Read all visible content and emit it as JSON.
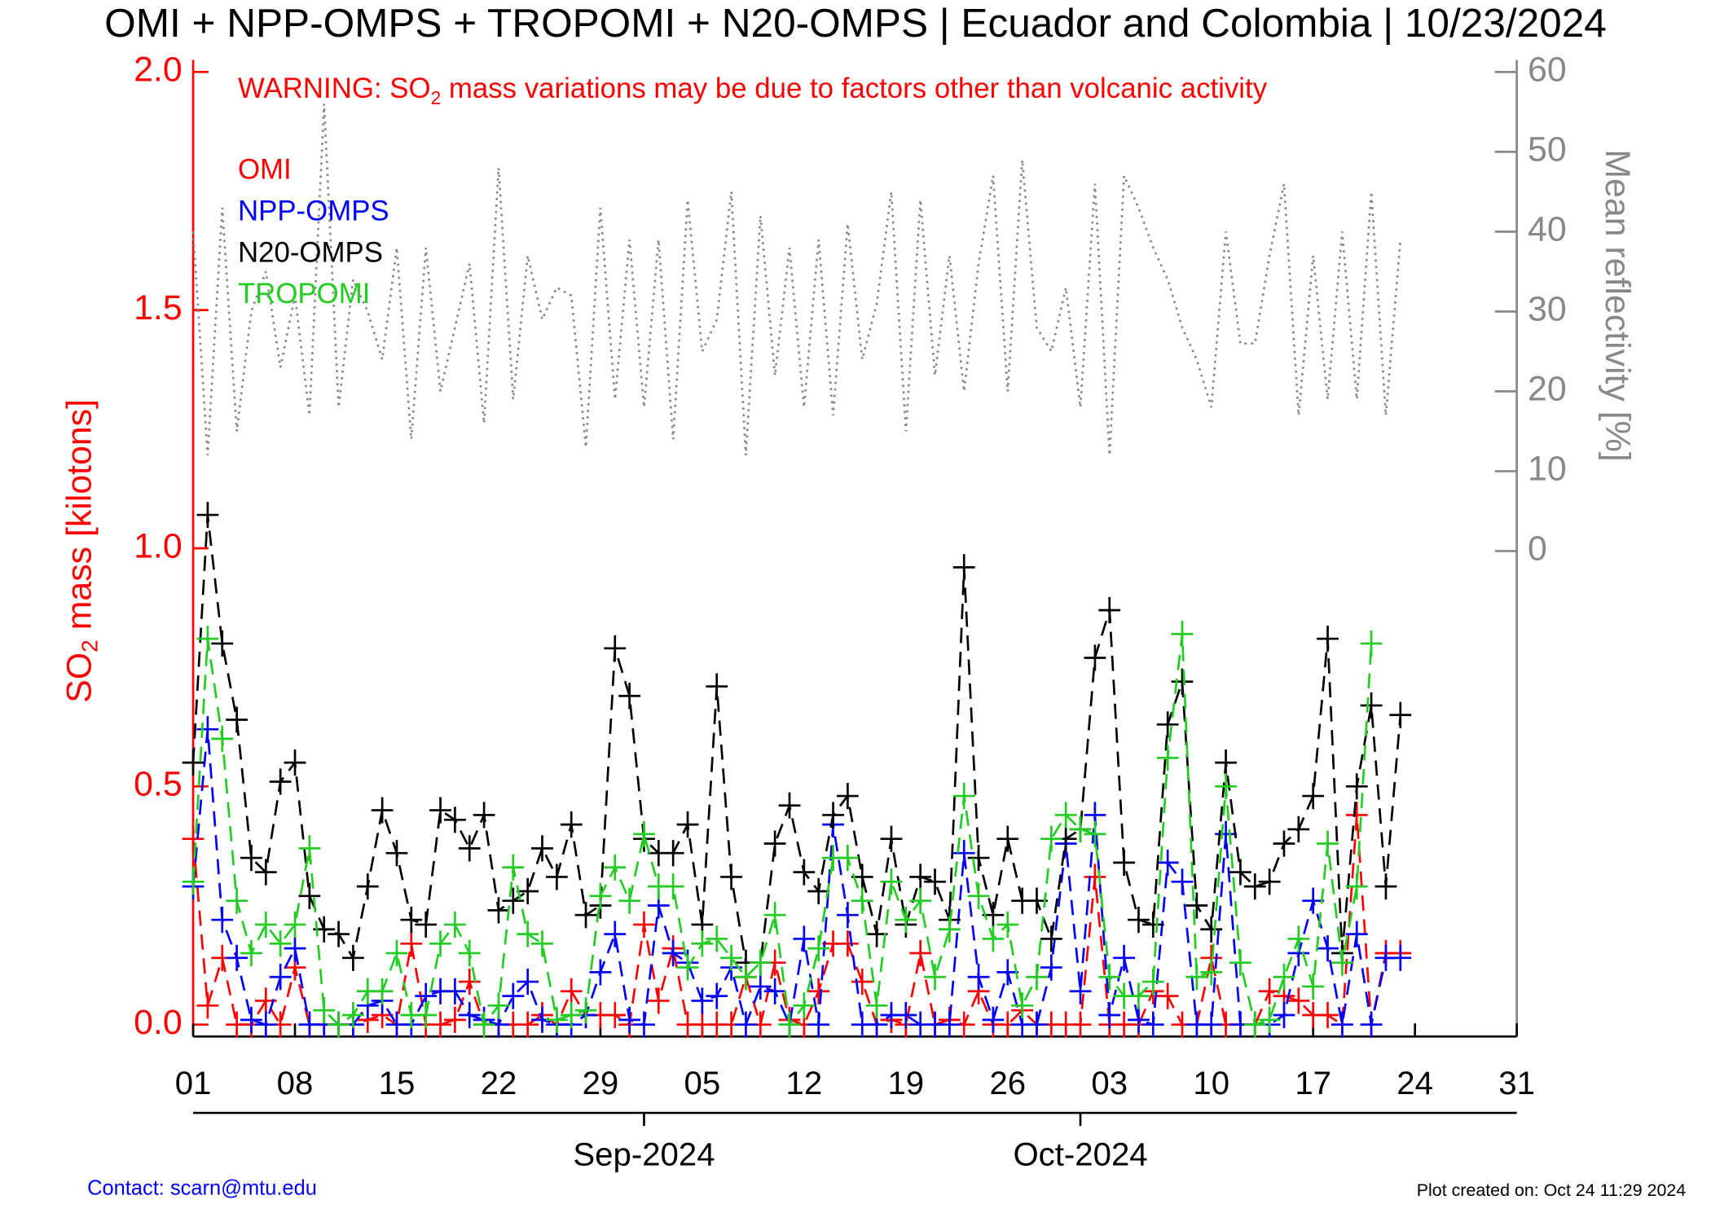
{
  "chart_data": {
    "type": "line",
    "title": "OMI + NPP-OMPS + TROPOMI + N20-OMPS | Ecuador and Colombia | 10/23/2024",
    "warning": [
      "WARNING: SO",
      "2",
      " mass variations may be due to factors other than volcanic activity"
    ],
    "ylabel": [
      "SO",
      "2",
      " mass [kilotons]"
    ],
    "y2label": "Mean reflectivity [%]",
    "contact": "Contact: scarn@mtu.edu",
    "created": "Plot created on: Oct 24 11:29 2024",
    "x": [
      "2024-08-01",
      "2024-08-02",
      "2024-08-03",
      "2024-08-04",
      "2024-08-05",
      "2024-08-06",
      "2024-08-07",
      "2024-08-08",
      "2024-08-09",
      "2024-08-10",
      "2024-08-11",
      "2024-08-12",
      "2024-08-13",
      "2024-08-14",
      "2024-08-15",
      "2024-08-16",
      "2024-08-17",
      "2024-08-18",
      "2024-08-19",
      "2024-08-20",
      "2024-08-21",
      "2024-08-22",
      "2024-08-23",
      "2024-08-24",
      "2024-08-25",
      "2024-08-26",
      "2024-08-27",
      "2024-08-28",
      "2024-08-29",
      "2024-08-30",
      "2024-08-31",
      "2024-09-01",
      "2024-09-02",
      "2024-09-03",
      "2024-09-04",
      "2024-09-05",
      "2024-09-06",
      "2024-09-07",
      "2024-09-08",
      "2024-09-09",
      "2024-09-10",
      "2024-09-11",
      "2024-09-12",
      "2024-09-13",
      "2024-09-14",
      "2024-09-15",
      "2024-09-16",
      "2024-09-17",
      "2024-09-18",
      "2024-09-19",
      "2024-09-20",
      "2024-09-21",
      "2024-09-22",
      "2024-09-23",
      "2024-09-24",
      "2024-09-25",
      "2024-09-26",
      "2024-09-27",
      "2024-09-28",
      "2024-09-29",
      "2024-09-30",
      "2024-10-01",
      "2024-10-02",
      "2024-10-03",
      "2024-10-04",
      "2024-10-05",
      "2024-10-06",
      "2024-10-07",
      "2024-10-08",
      "2024-10-09",
      "2024-10-10",
      "2024-10-11",
      "2024-10-12",
      "2024-10-13",
      "2024-10-14",
      "2024-10-15",
      "2024-10-16",
      "2024-10-17",
      "2024-10-18",
      "2024-10-19",
      "2024-10-20",
      "2024-10-21",
      "2024-10-22",
      "2024-10-23"
    ],
    "series": [
      {
        "name": "OMI",
        "color": "#ff0000",
        "values": [
          0.39,
          0.04,
          0.14,
          0.0,
          0.0,
          0.05,
          0.0,
          0.12,
          0.0,
          0.0,
          0.0,
          0.0,
          0.01,
          0.02,
          0.0,
          0.17,
          0.0,
          0.0,
          0.01,
          0.09,
          0.0,
          0.0,
          0.0,
          0.0,
          0.02,
          0.0,
          0.07,
          0.02,
          0.02,
          0.02,
          0.0,
          0.21,
          0.05,
          0.16,
          0.0,
          0.0,
          0.0,
          0.0,
          0.1,
          0.0,
          0.13,
          0.01,
          0.0,
          0.07,
          0.17,
          0.17,
          0.09,
          0.0,
          0.01,
          0.0,
          0.15,
          0.0,
          0.01,
          0.0,
          0.07,
          0.0,
          0.0,
          0.03,
          0.0,
          0.0,
          0.0,
          0.0,
          0.31,
          0.0,
          0.0,
          0.0,
          0.07,
          0.06,
          0.0,
          0.0,
          0.14,
          0.0,
          0.0,
          0.0,
          0.07,
          0.06,
          0.05,
          0.02,
          0.02,
          0.0,
          0.44,
          0.0,
          0.15,
          0.15
        ]
      },
      {
        "name": "NPP-OMPS",
        "color": "#0000ff",
        "values": [
          0.29,
          0.62,
          0.22,
          0.14,
          0.01,
          0.0,
          0.1,
          0.16,
          0.0,
          0.0,
          0.0,
          0.0,
          0.04,
          0.05,
          0.0,
          0.0,
          0.06,
          0.07,
          0.07,
          0.02,
          0.01,
          0.0,
          0.06,
          0.09,
          0.01,
          0.0,
          0.0,
          0.02,
          0.11,
          0.19,
          0.01,
          0.0,
          0.25,
          0.15,
          0.13,
          0.05,
          0.06,
          0.12,
          0.0,
          0.08,
          0.07,
          0.0,
          0.18,
          0.0,
          0.42,
          0.23,
          0.0,
          0.0,
          0.02,
          0.02,
          0.0,
          0.0,
          0.0,
          0.36,
          0.1,
          0.01,
          0.11,
          0.0,
          0.0,
          0.12,
          0.38,
          0.07,
          0.44,
          0.02,
          0.14,
          0.01,
          0.0,
          0.34,
          0.3,
          0.0,
          0.0,
          0.4,
          0.0,
          0.0,
          0.0,
          0.02,
          0.15,
          0.26,
          0.16,
          0.0,
          0.19,
          0.0,
          0.14,
          0.14
        ]
      },
      {
        "name": "N20-OMPS",
        "color": "#000000",
        "values": [
          0.55,
          1.07,
          0.8,
          0.64,
          0.35,
          0.32,
          0.51,
          0.55,
          0.27,
          0.2,
          0.19,
          0.14,
          0.29,
          0.45,
          0.36,
          0.22,
          0.21,
          0.45,
          0.43,
          0.37,
          0.44,
          0.24,
          0.26,
          0.28,
          0.37,
          0.31,
          0.42,
          0.23,
          0.25,
          0.79,
          0.69,
          0.39,
          0.36,
          0.36,
          0.42,
          0.21,
          0.71,
          0.31,
          0.13,
          0.13,
          0.38,
          0.46,
          0.32,
          0.28,
          0.44,
          0.48,
          0.31,
          0.19,
          0.39,
          0.21,
          0.31,
          0.3,
          0.22,
          0.96,
          0.35,
          0.23,
          0.39,
          0.26,
          0.26,
          0.18,
          0.39,
          0.41,
          0.77,
          0.87,
          0.34,
          0.22,
          0.21,
          0.63,
          0.72,
          0.25,
          0.2,
          0.55,
          0.32,
          0.29,
          0.3,
          0.38,
          0.41,
          0.48,
          0.81,
          0.15,
          0.5,
          0.67,
          0.29,
          0.65
        ]
      },
      {
        "name": "TROPOMI",
        "color": "#22cc22",
        "values": [
          0.3,
          0.81,
          0.6,
          0.26,
          0.15,
          0.21,
          0.17,
          0.21,
          0.37,
          0.03,
          0.0,
          0.02,
          0.07,
          0.07,
          0.15,
          0.02,
          0.02,
          0.17,
          0.21,
          0.15,
          0.0,
          0.04,
          0.33,
          0.19,
          0.17,
          0.01,
          0.02,
          0.03,
          0.27,
          0.33,
          0.26,
          0.4,
          0.29,
          0.29,
          0.12,
          0.17,
          0.18,
          0.14,
          0.1,
          0.13,
          0.23,
          0.0,
          0.04,
          0.16,
          0.35,
          0.35,
          0.26,
          0.04,
          0.3,
          0.22,
          0.26,
          0.1,
          0.2,
          0.48,
          0.27,
          0.18,
          0.21,
          0.04,
          0.1,
          0.39,
          0.44,
          0.41,
          0.4,
          0.1,
          0.06,
          0.06,
          0.09,
          0.56,
          0.82,
          0.1,
          0.11,
          0.5,
          0.13,
          0.0,
          0.01,
          0.1,
          0.18,
          0.08,
          0.38,
          0.13,
          0.29,
          0.8,
          null,
          null
        ]
      }
    ],
    "reflectivity": {
      "color": "#888888",
      "axis": "y2",
      "values": [
        40,
        12,
        43,
        15,
        30,
        35,
        23,
        32,
        17,
        56,
        18,
        34,
        30,
        24,
        38,
        14,
        38,
        20,
        28,
        36,
        16,
        48,
        19,
        37,
        29,
        33,
        32,
        13,
        43,
        19,
        39,
        18,
        39,
        14,
        44,
        25,
        29,
        45,
        12,
        42,
        22,
        38,
        18,
        39,
        17,
        41,
        24,
        31,
        45,
        15,
        44,
        22,
        37,
        20,
        36,
        47,
        20,
        49,
        28,
        25,
        33,
        18,
        46,
        12,
        47,
        43,
        38,
        34,
        28,
        24,
        18,
        40,
        26,
        26,
        37,
        46,
        17,
        37,
        19,
        40,
        19,
        45,
        17,
        39
      ]
    },
    "xlim": [
      "2024-08-01",
      "2024-10-31"
    ],
    "xticks": [
      {
        "value": "2024-08-01",
        "label": "01"
      },
      {
        "value": "2024-08-08",
        "label": "08"
      },
      {
        "value": "2024-08-15",
        "label": "15"
      },
      {
        "value": "2024-08-22",
        "label": "22"
      },
      {
        "value": "2024-08-29",
        "label": "29"
      },
      {
        "value": "2024-09-05",
        "label": "05"
      },
      {
        "value": "2024-09-12",
        "label": "12"
      },
      {
        "value": "2024-09-19",
        "label": "19"
      },
      {
        "value": "2024-09-26",
        "label": "26"
      },
      {
        "value": "2024-10-03",
        "label": "03"
      },
      {
        "value": "2024-10-10",
        "label": "10"
      },
      {
        "value": "2024-10-17",
        "label": "17"
      },
      {
        "value": "2024-10-24",
        "label": "24"
      },
      {
        "value": "2024-10-31",
        "label": "31"
      }
    ],
    "month_ticks": [
      {
        "value": "2024-09-01",
        "label": "Sep-2024"
      },
      {
        "value": "2024-10-01",
        "label": "Oct-2024"
      }
    ],
    "ylim": [
      -0.025,
      2.025
    ],
    "yticks": [
      {
        "value": 0,
        "label": "0.0"
      },
      {
        "value": 0.5,
        "label": "0.5"
      },
      {
        "value": 1,
        "label": "1.0"
      },
      {
        "value": 1.5,
        "label": "1.5"
      },
      {
        "value": 2,
        "label": "2.0"
      }
    ],
    "y2lim": [
      -60.8,
      61.5
    ],
    "y2ticks": [
      0,
      10,
      20,
      30,
      40,
      50,
      60
    ]
  }
}
